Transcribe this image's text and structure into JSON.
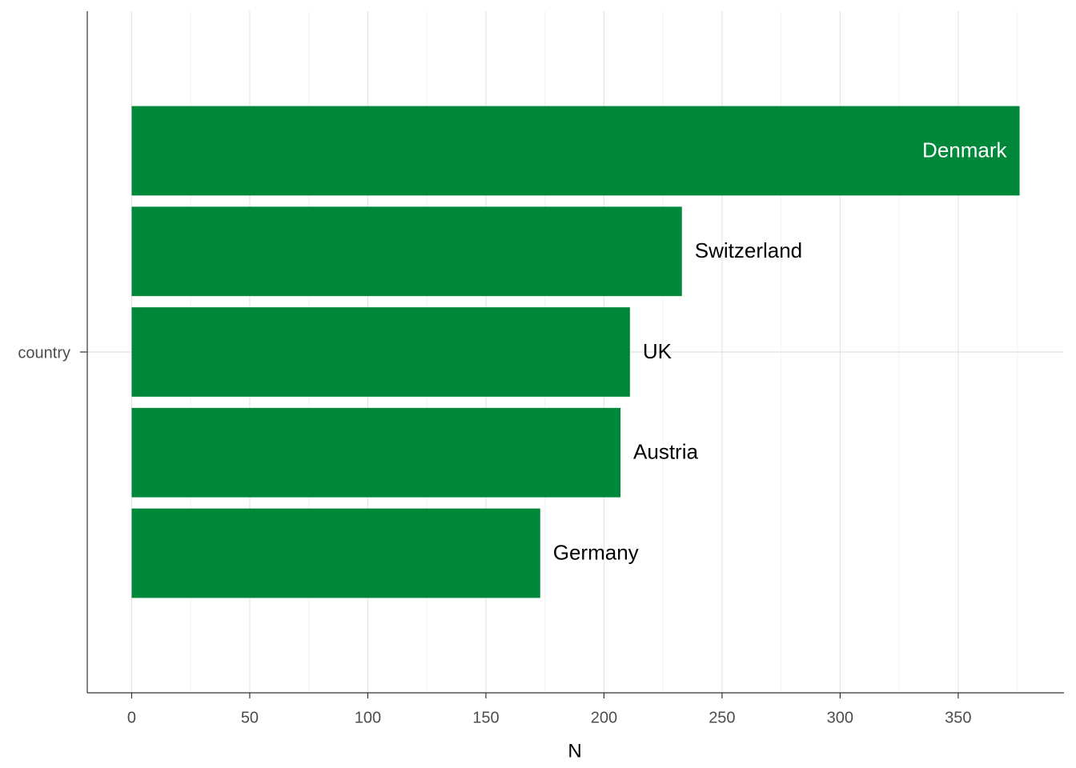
{
  "chart_data": {
    "type": "bar",
    "orientation": "horizontal",
    "x_label": "N",
    "categories": [
      "country"
    ],
    "series": [
      {
        "name": "Denmark",
        "color": "#00883a",
        "values": [
          376
        ]
      },
      {
        "name": "Switzerland",
        "color": "#00883a",
        "values": [
          233
        ]
      },
      {
        "name": "UK",
        "color": "#00883a",
        "values": [
          211
        ]
      },
      {
        "name": "Austria",
        "color": "#00883a",
        "values": [
          207
        ]
      },
      {
        "name": "Germany",
        "color": "#00883a",
        "values": [
          173
        ]
      }
    ],
    "xlim": [
      -18.8,
      394.8
    ],
    "xticks": [
      0,
      50,
      100,
      150,
      200,
      250,
      300,
      350
    ],
    "x_minor_ticks": [
      25,
      75,
      125,
      175,
      225,
      275,
      325,
      375
    ],
    "grid": true
  }
}
